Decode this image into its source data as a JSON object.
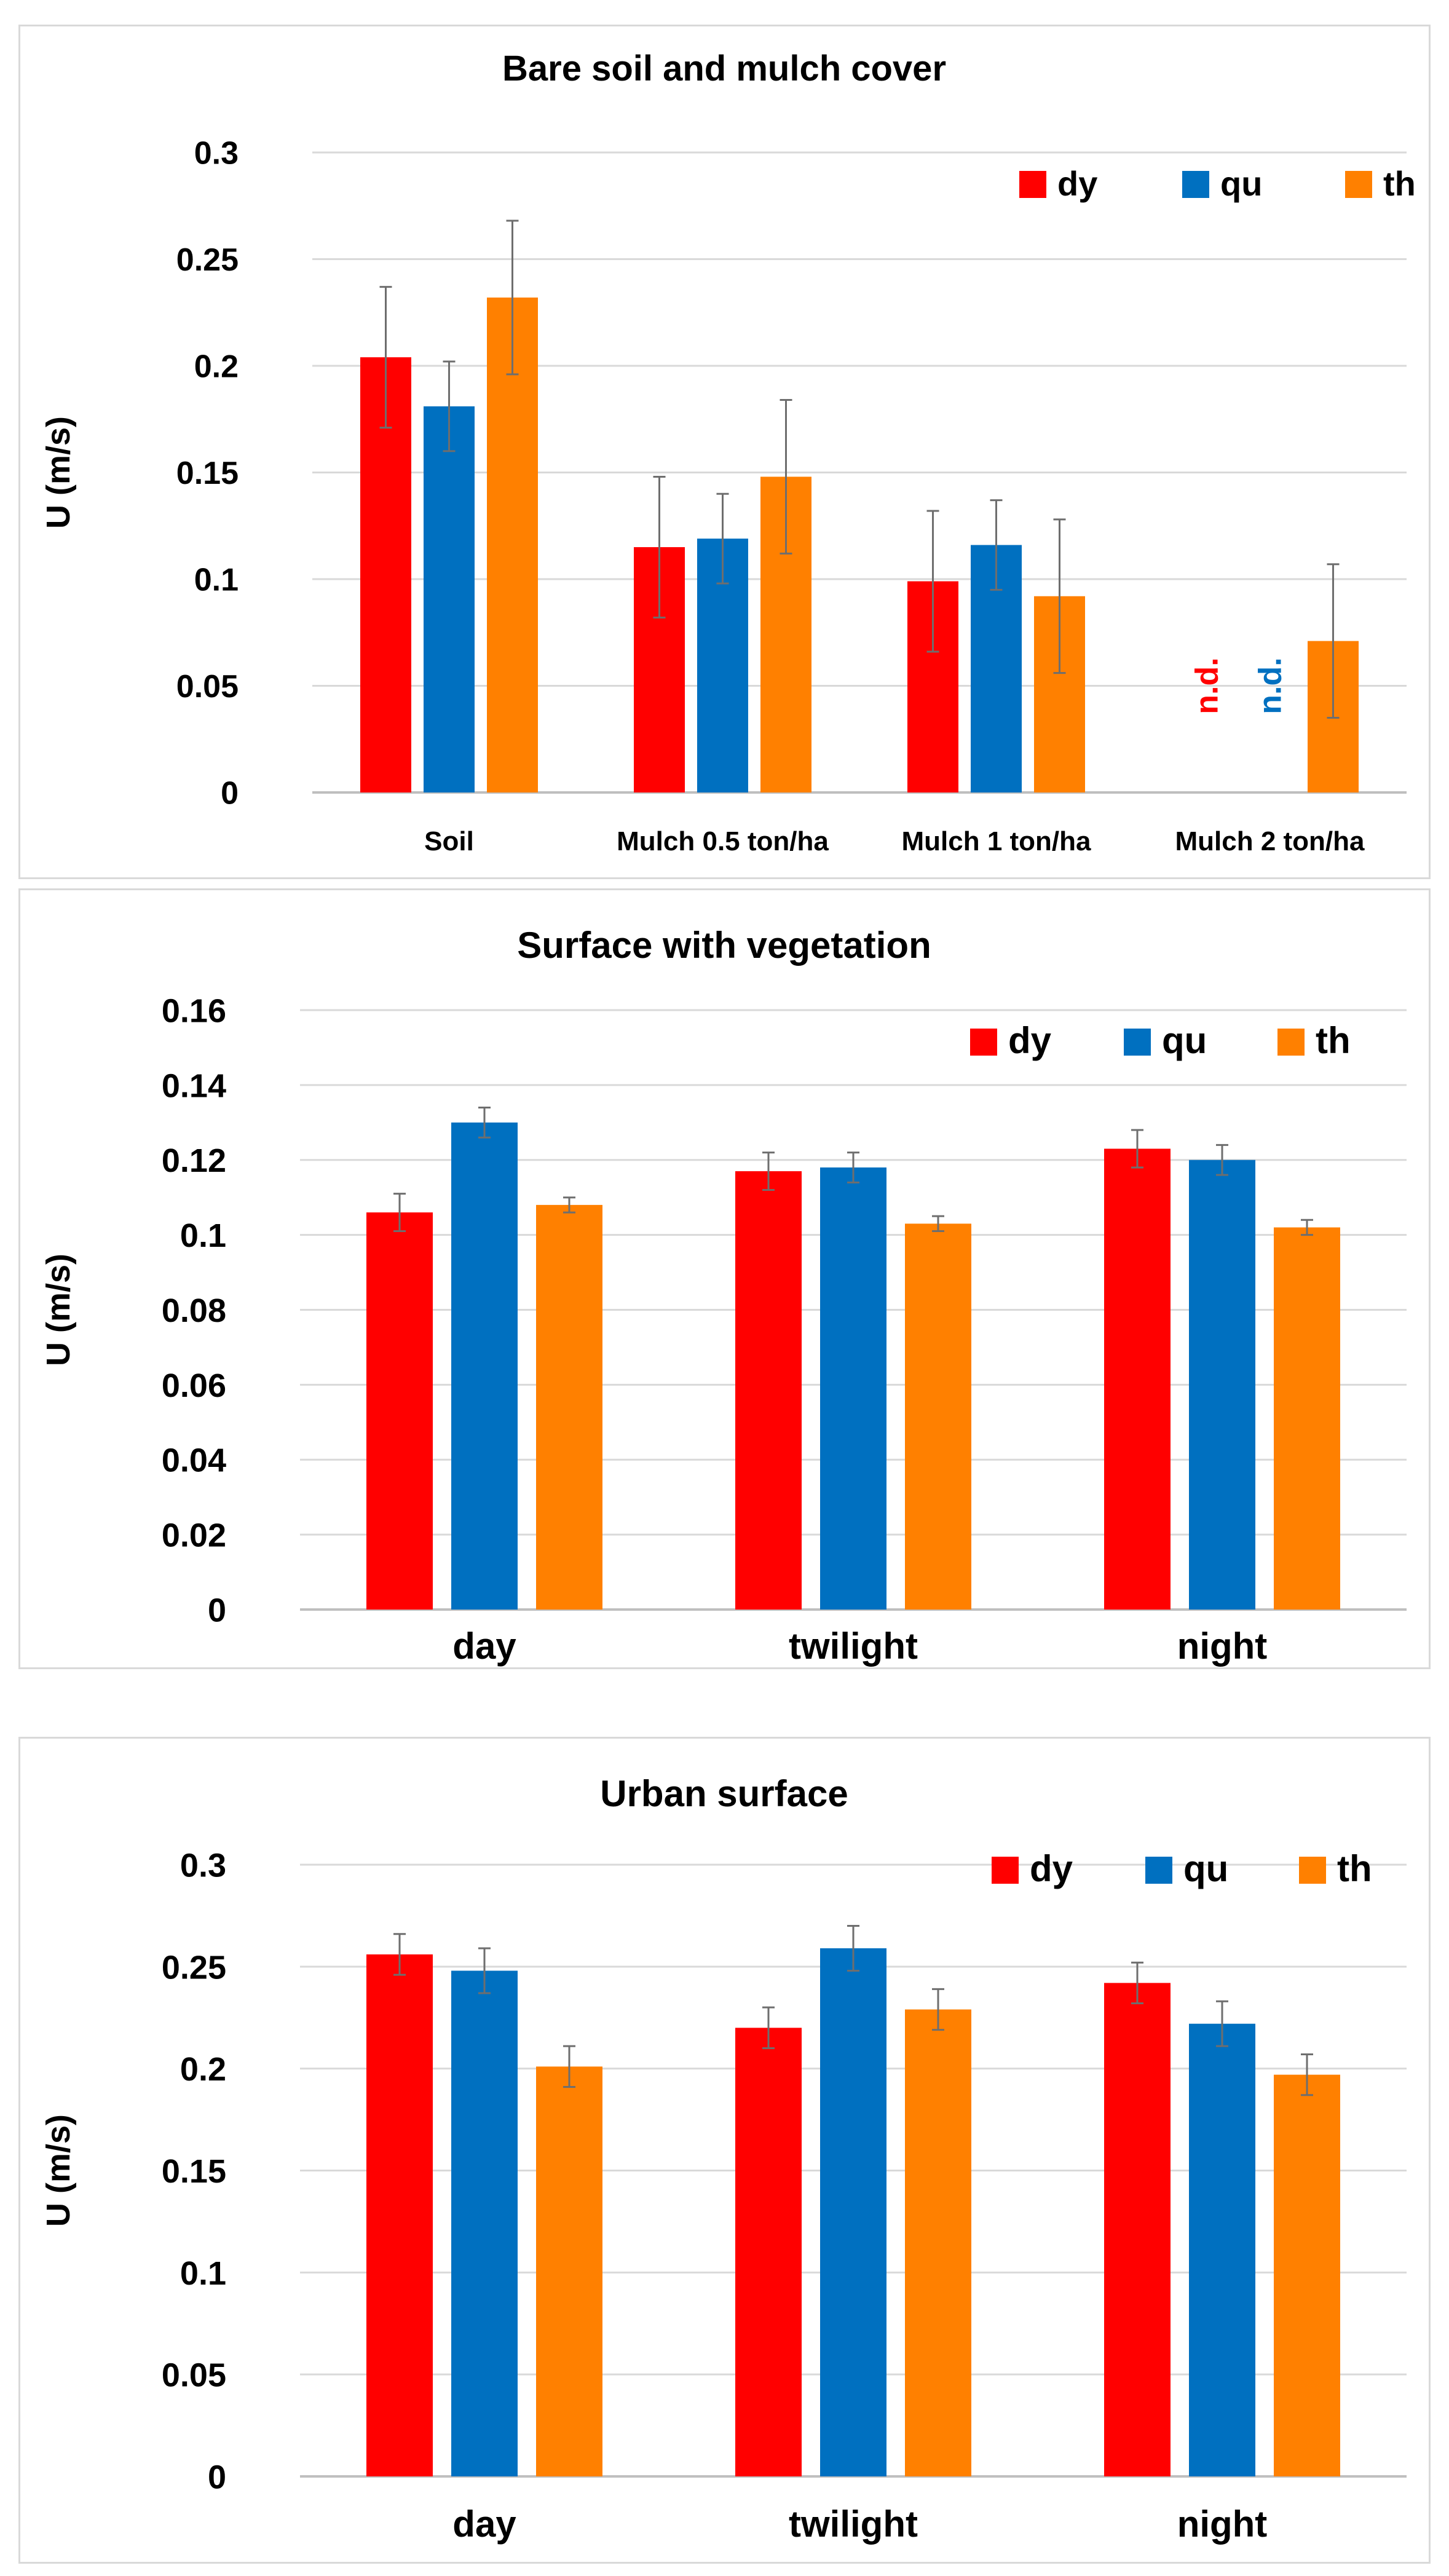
{
  "colors": {
    "dy": "#ff0000",
    "qu": "#0070c0",
    "th": "#ff8000",
    "errorbar": "#6e6e6e",
    "grid": "#d9d9d9",
    "text": "#000000"
  },
  "chart_data": [
    {
      "type": "bar",
      "title": "Bare soil and mulch cover",
      "xlabel": "",
      "ylabel": "U (m/s)",
      "ylim": [
        0,
        0.3
      ],
      "yticks": [
        "0",
        "0.05",
        "0.1",
        "0.15",
        "0.2",
        "0.25",
        "0.3"
      ],
      "grid": true,
      "legend_position": "top-right",
      "categories": [
        "Soil",
        "Mulch 0.5 ton/ha",
        "Mulch 1 ton/ha",
        "Mulch 2 ton/ha"
      ],
      "series": [
        {
          "name": "dy",
          "values": [
            0.204,
            0.115,
            0.099,
            null
          ],
          "errors": [
            0.033,
            0.033,
            0.033,
            null
          ]
        },
        {
          "name": "qu",
          "values": [
            0.181,
            0.119,
            0.116,
            null
          ],
          "errors": [
            0.021,
            0.021,
            0.021,
            null
          ]
        },
        {
          "name": "th",
          "values": [
            0.232,
            0.148,
            0.092,
            0.071
          ],
          "errors": [
            0.036,
            0.036,
            0.036,
            0.036
          ]
        }
      ],
      "annotations": [
        {
          "text": "n.d.",
          "series": "dy",
          "category": "Mulch 2 ton/ha"
        },
        {
          "text": "n.d.",
          "series": "qu",
          "category": "Mulch 2 ton/ha"
        }
      ]
    },
    {
      "type": "bar",
      "title": "Surface with vegetation",
      "xlabel": "",
      "ylabel": "U (m/s)",
      "ylim": [
        0,
        0.16
      ],
      "yticks": [
        "0",
        "0.02",
        "0.04",
        "0.06",
        "0.08",
        "0.1",
        "0.12",
        "0.14",
        "0.16"
      ],
      "grid": true,
      "legend_position": "top-right",
      "categories": [
        "day",
        "twilight",
        "night"
      ],
      "series": [
        {
          "name": "dy",
          "values": [
            0.106,
            0.117,
            0.123
          ],
          "errors": [
            0.005,
            0.005,
            0.005
          ]
        },
        {
          "name": "qu",
          "values": [
            0.13,
            0.118,
            0.12
          ],
          "errors": [
            0.004,
            0.004,
            0.004
          ]
        },
        {
          "name": "th",
          "values": [
            0.108,
            0.103,
            0.102
          ],
          "errors": [
            0.002,
            0.002,
            0.002
          ]
        }
      ],
      "annotations": []
    },
    {
      "type": "bar",
      "title": "Urban surface",
      "xlabel": "",
      "ylabel": "U (m/s)",
      "ylim": [
        0,
        0.3
      ],
      "yticks": [
        "0",
        "0.05",
        "0.1",
        "0.15",
        "0.2",
        "0.25",
        "0.3"
      ],
      "grid": true,
      "legend_position": "top-right",
      "categories": [
        "day",
        "twilight",
        "night"
      ],
      "series": [
        {
          "name": "dy",
          "values": [
            0.256,
            0.22,
            0.242
          ],
          "errors": [
            0.01,
            0.01,
            0.01
          ]
        },
        {
          "name": "qu",
          "values": [
            0.248,
            0.259,
            0.222
          ],
          "errors": [
            0.011,
            0.011,
            0.011
          ]
        },
        {
          "name": "th",
          "values": [
            0.201,
            0.229,
            0.197
          ],
          "errors": [
            0.01,
            0.01,
            0.01
          ]
        }
      ],
      "annotations": []
    }
  ]
}
